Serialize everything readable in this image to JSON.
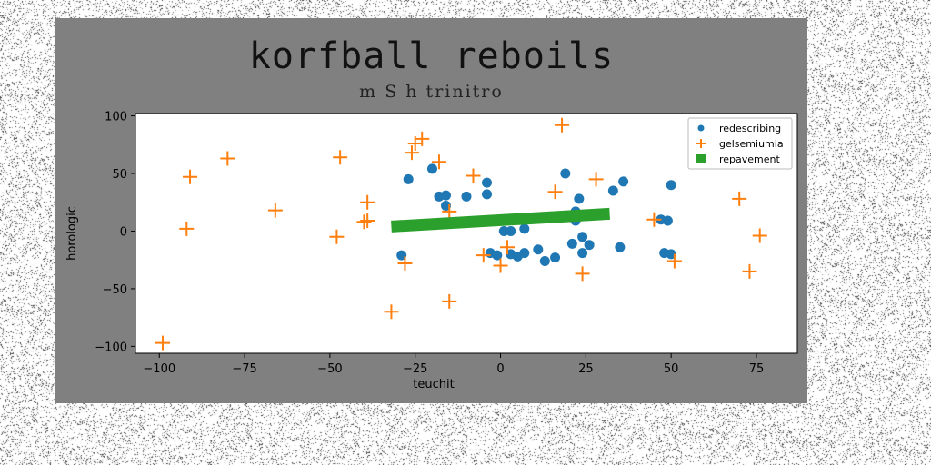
{
  "chart_data": {
    "type": "scatter",
    "title": "korfball reboils",
    "subtitle": "m S h trinitro",
    "xlabel": "teuchit",
    "ylabel": "horologic",
    "xlim": [
      -107,
      87
    ],
    "ylim": [
      -106,
      102
    ],
    "xticks": [
      -100,
      -75,
      -50,
      -25,
      0,
      25,
      50,
      75
    ],
    "yticks": [
      -100,
      -50,
      0,
      50,
      100
    ],
    "grid": false,
    "legend_position": "top-right",
    "series": [
      {
        "name": "redescribing",
        "marker": "circle",
        "color": "#1f77b4",
        "points": [
          [
            -29,
            -21
          ],
          [
            -27,
            45
          ],
          [
            -20,
            54
          ],
          [
            -18,
            30
          ],
          [
            -16,
            31
          ],
          [
            -16,
            22
          ],
          [
            -10,
            30
          ],
          [
            -4,
            42
          ],
          [
            -4,
            32
          ],
          [
            -3,
            -19
          ],
          [
            -1,
            -21
          ],
          [
            1,
            0
          ],
          [
            3,
            0
          ],
          [
            3,
            -20
          ],
          [
            5,
            -22
          ],
          [
            7,
            -19
          ],
          [
            7,
            2
          ],
          [
            11,
            -16
          ],
          [
            13,
            -26
          ],
          [
            16,
            -23
          ],
          [
            19,
            50
          ],
          [
            21,
            -11
          ],
          [
            22,
            17
          ],
          [
            22,
            9
          ],
          [
            23,
            28
          ],
          [
            24,
            -5
          ],
          [
            24,
            -19
          ],
          [
            26,
            -12
          ],
          [
            33,
            35
          ],
          [
            35,
            -14
          ],
          [
            36,
            43
          ],
          [
            47,
            10
          ],
          [
            48,
            -19
          ],
          [
            49,
            9
          ],
          [
            50,
            -20
          ],
          [
            50,
            40
          ]
        ]
      },
      {
        "name": "gelsemiumia",
        "marker": "plus",
        "color": "#ff7f0e",
        "points": [
          [
            -99,
            -97
          ],
          [
            -92,
            2
          ],
          [
            -91,
            47
          ],
          [
            -80,
            63
          ],
          [
            -66,
            18
          ],
          [
            -48,
            -5
          ],
          [
            -47,
            64
          ],
          [
            -40,
            8
          ],
          [
            -39,
            25
          ],
          [
            -39,
            9
          ],
          [
            -32,
            -70
          ],
          [
            -28,
            -28
          ],
          [
            -26,
            68
          ],
          [
            -25,
            76
          ],
          [
            -23,
            80
          ],
          [
            -18,
            60
          ],
          [
            -15,
            17
          ],
          [
            -15,
            -61
          ],
          [
            -8,
            48
          ],
          [
            -5,
            -21
          ],
          [
            0,
            -30
          ],
          [
            2,
            -14
          ],
          [
            16,
            34
          ],
          [
            18,
            92
          ],
          [
            24,
            -37
          ],
          [
            28,
            45
          ],
          [
            45,
            10
          ],
          [
            51,
            -26
          ],
          [
            70,
            28
          ],
          [
            73,
            -35
          ],
          [
            76,
            -4
          ]
        ]
      },
      {
        "name": "repavement",
        "marker": "line",
        "color": "#2ca02c",
        "points": [
          [
            -32,
            4
          ],
          [
            32,
            15
          ]
        ]
      }
    ]
  }
}
